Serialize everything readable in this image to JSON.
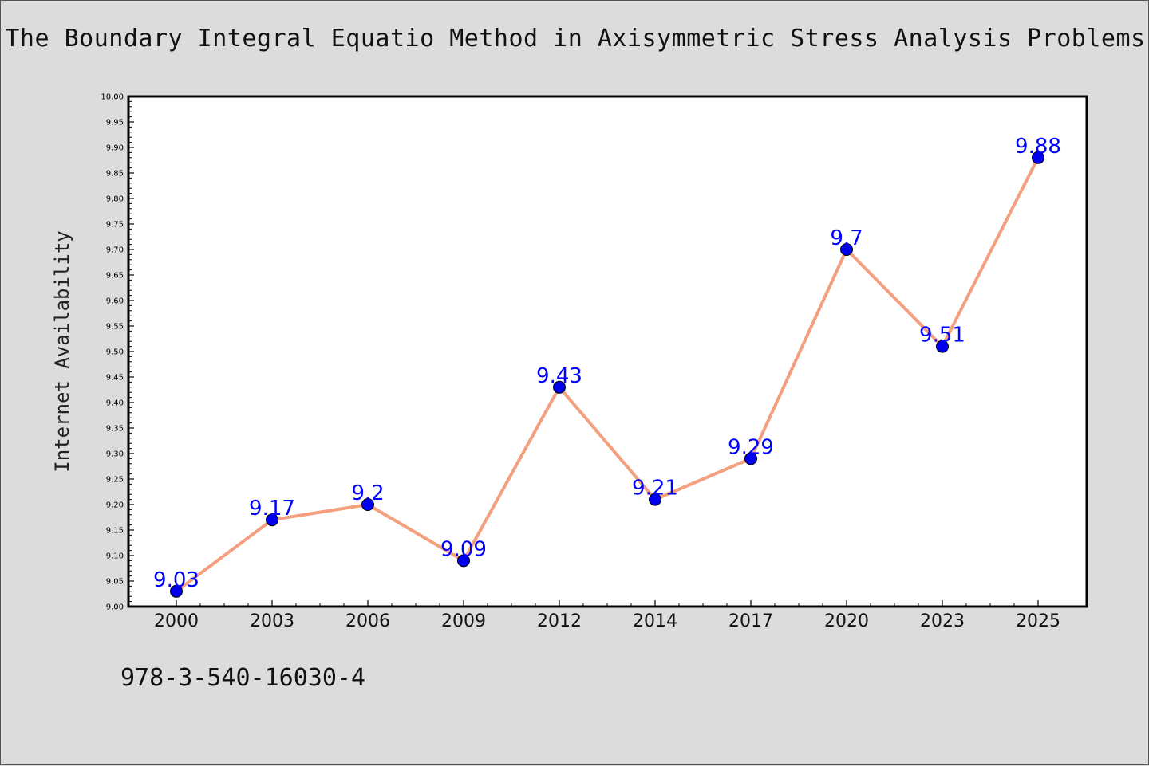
{
  "title": "The Boundary Integral Equatio Method in Axisymmetric Stress Analysis Problems",
  "footer": {
    "isbn": "978-3-540-16030-4"
  },
  "colors": {
    "background": "#dcdcdc",
    "plot_background": "#ffffff",
    "line": "#f4a07e",
    "marker": "#0000ee",
    "label": "#0000ff",
    "axis": "#000000"
  },
  "chart_data": {
    "type": "line",
    "title": "The Boundary Integral Equatio Method in Axisymmetric Stress Analysis Problems",
    "xlabel": "",
    "ylabel": "Internet Availability",
    "categories": [
      "2000",
      "2003",
      "2006",
      "2009",
      "2012",
      "2014",
      "2017",
      "2020",
      "2023",
      "2025"
    ],
    "series": [
      {
        "values": [
          9.03,
          9.17,
          9.2,
          9.09,
          9.43,
          9.21,
          9.29,
          9.7,
          9.51,
          9.88
        ]
      }
    ],
    "data_labels": [
      "9.03",
      "9.17",
      "9.2",
      "9.09",
      "9.43",
      "9.21",
      "9.29",
      "9.7",
      "9.51",
      "9.88"
    ],
    "ylim": [
      9.0,
      10.0
    ],
    "yticks": [
      "9.00",
      "9.05",
      "9.10",
      "9.15",
      "9.20",
      "9.25",
      "9.30",
      "9.35",
      "9.40",
      "9.45",
      "9.50",
      "9.55",
      "9.60",
      "9.65",
      "9.70",
      "9.75",
      "9.80",
      "9.85",
      "9.90",
      "9.95",
      "10.00"
    ],
    "grid": false,
    "legend": "none"
  }
}
